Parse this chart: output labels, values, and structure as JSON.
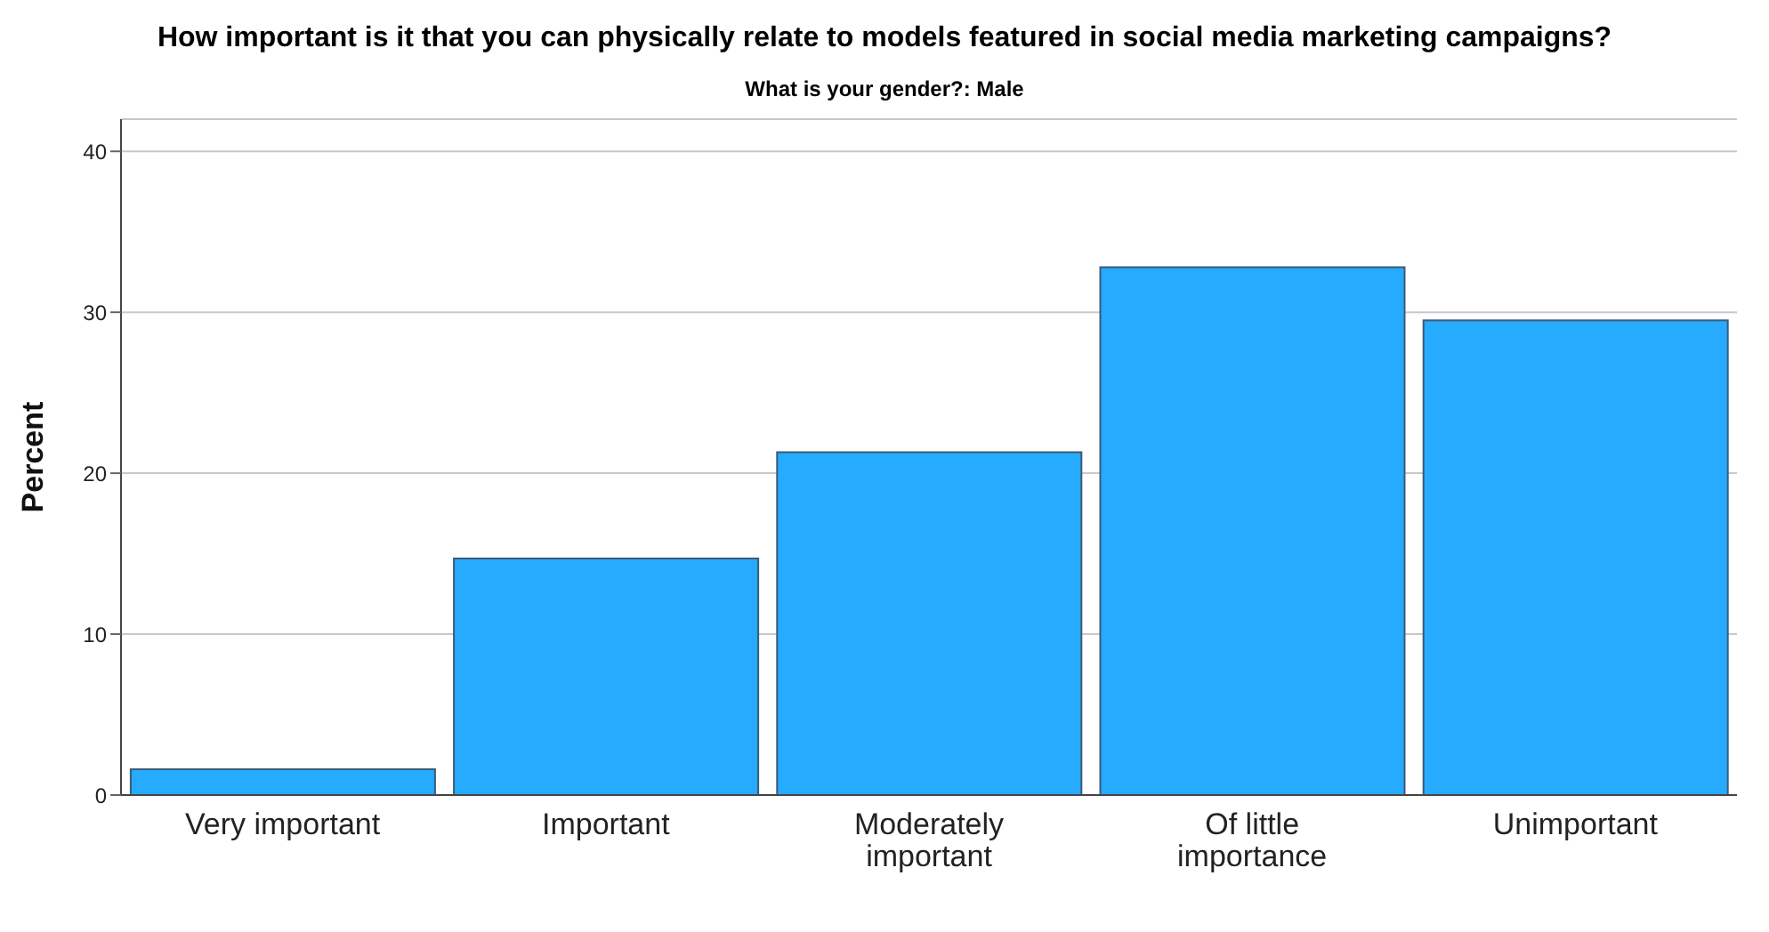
{
  "chart_data": {
    "type": "bar",
    "title": "How important is it that you can physically relate to models featured in social media marketing campaigns?",
    "subtitle": "What is your gender?: Male",
    "ylabel": "Percent",
    "categories": [
      "Very important",
      "Important",
      "Moderately important",
      "Of little importance",
      "Unimportant"
    ],
    "values": [
      1.6,
      14.7,
      21.3,
      32.8,
      29.5
    ],
    "color": "#26abff",
    "ylim": [
      0,
      42
    ],
    "yticks": [
      0,
      10,
      20,
      30,
      40
    ],
    "grid": "y"
  }
}
